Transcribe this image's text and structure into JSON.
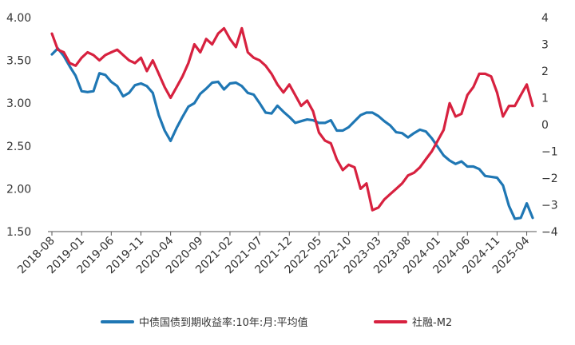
{
  "chart_data": {
    "type": "line",
    "x_labels": [
      "2018-08",
      "2019-01",
      "2019-06",
      "2019-11",
      "2020-04",
      "2020-09",
      "2021-02",
      "2021-07",
      "2021-12",
      "2022-05",
      "2022-10",
      "2023-03",
      "2023-08",
      "2024-01",
      "2024-06",
      "2024-11",
      "2025-04"
    ],
    "x": [
      "2018-08",
      "2018-09",
      "2018-10",
      "2018-11",
      "2018-12",
      "2019-01",
      "2019-02",
      "2019-03",
      "2019-04",
      "2019-05",
      "2019-06",
      "2019-07",
      "2019-08",
      "2019-09",
      "2019-10",
      "2019-11",
      "2019-12",
      "2020-01",
      "2020-02",
      "2020-03",
      "2020-04",
      "2020-05",
      "2020-06",
      "2020-07",
      "2020-08",
      "2020-09",
      "2020-10",
      "2020-11",
      "2020-12",
      "2021-01",
      "2021-02",
      "2021-03",
      "2021-04",
      "2021-05",
      "2021-06",
      "2021-07",
      "2021-08",
      "2021-09",
      "2021-10",
      "2021-11",
      "2021-12",
      "2022-01",
      "2022-02",
      "2022-03",
      "2022-04",
      "2022-05",
      "2022-06",
      "2022-07",
      "2022-08",
      "2022-09",
      "2022-10",
      "2022-11",
      "2022-12",
      "2023-01",
      "2023-02",
      "2023-03",
      "2023-04",
      "2023-05",
      "2023-06",
      "2023-07",
      "2023-08",
      "2023-09",
      "2023-10",
      "2023-11",
      "2023-12",
      "2024-01",
      "2024-02",
      "2024-03",
      "2024-04",
      "2024-05",
      "2024-06",
      "2024-07",
      "2024-08",
      "2024-09",
      "2024-10",
      "2024-11",
      "2024-12",
      "2025-01",
      "2025-02",
      "2025-03",
      "2025-04",
      "2025-05"
    ],
    "left_axis": {
      "ylim": [
        1.5,
        4.0
      ],
      "ticks": [
        "4.00",
        "3.50",
        "3.00",
        "2.50",
        "2.00",
        "1.50"
      ],
      "tick_values": [
        4.0,
        3.5,
        3.0,
        2.5,
        2.0,
        1.5
      ]
    },
    "right_axis": {
      "ylim": [
        -4,
        4
      ],
      "ticks": [
        "4",
        "3",
        "2",
        "1",
        "0",
        "−1",
        "−2",
        "−3",
        "−4"
      ],
      "tick_values": [
        4,
        3,
        2,
        1,
        0,
        -1,
        -2,
        -3,
        -4
      ]
    },
    "series": [
      {
        "name": "中债国债到期收益率:10年:月:平均值",
        "axis": "left",
        "color": "#1F77B4",
        "values": [
          3.57,
          3.64,
          3.55,
          3.43,
          3.32,
          3.14,
          3.13,
          3.14,
          3.35,
          3.33,
          3.25,
          3.2,
          3.08,
          3.12,
          3.21,
          3.23,
          3.2,
          3.12,
          2.86,
          2.68,
          2.56,
          2.71,
          2.84,
          2.96,
          3.0,
          3.11,
          3.17,
          3.24,
          3.25,
          3.16,
          3.23,
          3.24,
          3.2,
          3.12,
          3.1,
          3.0,
          2.89,
          2.88,
          2.97,
          2.9,
          2.84,
          2.77,
          2.79,
          2.81,
          2.8,
          2.77,
          2.77,
          2.8,
          2.68,
          2.68,
          2.72,
          2.79,
          2.86,
          2.89,
          2.89,
          2.85,
          2.79,
          2.74,
          2.66,
          2.65,
          2.6,
          2.65,
          2.69,
          2.67,
          2.59,
          2.49,
          2.39,
          2.33,
          2.29,
          2.32,
          2.26,
          2.26,
          2.23,
          2.15,
          2.14,
          2.13,
          2.04,
          1.8,
          1.65,
          1.66,
          1.83,
          1.66
        ]
      },
      {
        "name": "社融-M2",
        "axis": "right",
        "color": "#D7213F",
        "values": [
          3.4,
          2.8,
          2.7,
          2.3,
          2.2,
          2.5,
          2.7,
          2.6,
          2.4,
          2.6,
          2.7,
          2.8,
          2.6,
          2.4,
          2.3,
          2.5,
          2.0,
          2.4,
          1.9,
          1.4,
          1.0,
          1.4,
          1.8,
          2.3,
          3.0,
          2.7,
          3.2,
          3.0,
          3.4,
          3.6,
          3.2,
          2.9,
          3.6,
          2.7,
          2.5,
          2.4,
          2.2,
          1.9,
          1.5,
          1.2,
          1.5,
          1.1,
          0.7,
          0.9,
          0.5,
          -0.3,
          -0.6,
          -0.7,
          -1.3,
          -1.7,
          -1.5,
          -1.6,
          -2.4,
          -2.2,
          -3.2,
          -3.1,
          -2.8,
          -2.6,
          -2.4,
          -2.2,
          -1.9,
          -1.8,
          -1.6,
          -1.3,
          -1.0,
          -0.6,
          -0.2,
          0.8,
          0.3,
          0.4,
          1.1,
          1.4,
          1.9,
          1.9,
          1.8,
          1.2,
          0.3,
          0.7,
          0.7,
          1.1,
          1.5,
          0.7
        ]
      }
    ],
    "legend_position": "bottom",
    "grid": false
  }
}
